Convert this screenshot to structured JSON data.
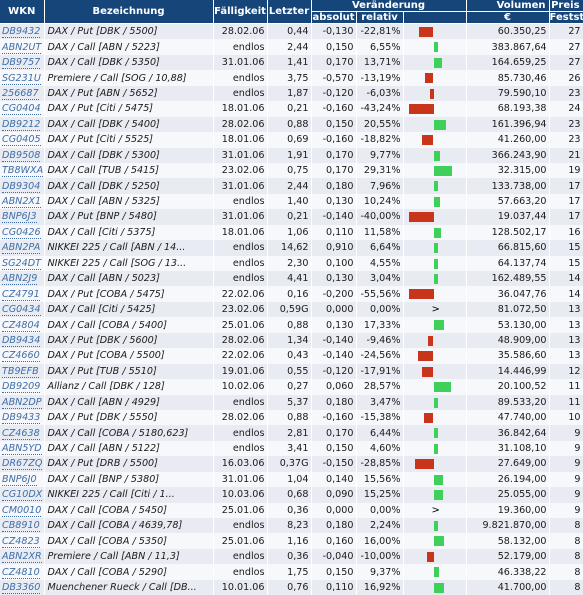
{
  "header": {
    "wkn": "WKN",
    "bezeichnung": "Bezeichnung",
    "faelligkeit": "Fälligkeit",
    "letzter": "Letzter",
    "veraenderung": "Veränderung",
    "absolut": "absolut",
    "relativ": "relativ",
    "volumen": "Volumen",
    "waehrung": "€",
    "preis": "Preis",
    "feststellungen": "Festst."
  },
  "colors": {
    "header_bg": "#16457a",
    "positive": "#3fd05a",
    "negative": "#c8351a",
    "link": "#3f6ea8"
  },
  "rows": [
    {
      "wkn": "DB9432",
      "bez": "DAX / Put [DBK / 5500]",
      "faell": "28.02.06",
      "letzter": "0,44",
      "abs": "-0,130",
      "rel": "-22,81%",
      "pct": -22.81,
      "vol": "60.350,25",
      "preis": "27"
    },
    {
      "wkn": "ABN2UT",
      "bez": "DAX / Call [ABN / 5223]",
      "faell": "endlos",
      "letzter": "2,44",
      "abs": "0,150",
      "rel": "6,55%",
      "pct": 6.55,
      "vol": "383.867,64",
      "preis": "27"
    },
    {
      "wkn": "DB9757",
      "bez": "DAX / Call [DBK / 5350]",
      "faell": "31.01.06",
      "letzter": "1,41",
      "abs": "0,170",
      "rel": "13,71%",
      "pct": 13.71,
      "vol": "164.659,25",
      "preis": "27"
    },
    {
      "wkn": "SG231U",
      "bez": "Premiere / Call [SOG / 10,88]",
      "faell": "endlos",
      "letzter": "3,75",
      "abs": "-0,570",
      "rel": "-13,19%",
      "pct": -13.19,
      "vol": "85.730,46",
      "preis": "26"
    },
    {
      "wkn": "256687",
      "bez": "DAX / Put [ABN / 5652]",
      "faell": "endlos",
      "letzter": "1,87",
      "abs": "-0,120",
      "rel": "-6,03%",
      "pct": -6.03,
      "vol": "79.590,10",
      "preis": "23"
    },
    {
      "wkn": "CG0404",
      "bez": "DAX / Put [Citi / 5475]",
      "faell": "18.01.06",
      "letzter": "0,21",
      "abs": "-0,160",
      "rel": "-43,24%",
      "pct": -43.24,
      "vol": "68.193,38",
      "preis": "24"
    },
    {
      "wkn": "DB9212",
      "bez": "DAX / Call [DBK / 5400]",
      "faell": "28.02.06",
      "letzter": "0,88",
      "abs": "0,150",
      "rel": "20,55%",
      "pct": 20.55,
      "vol": "161.396,94",
      "preis": "23"
    },
    {
      "wkn": "CG0405",
      "bez": "DAX / Put [Citi / 5525]",
      "faell": "18.01.06",
      "letzter": "0,69",
      "abs": "-0,160",
      "rel": "-18,82%",
      "pct": -18.82,
      "vol": "41.260,00",
      "preis": "23"
    },
    {
      "wkn": "DB9508",
      "bez": "DAX / Call [DBK / 5300]",
      "faell": "31.01.06",
      "letzter": "1,91",
      "abs": "0,170",
      "rel": "9,77%",
      "pct": 9.77,
      "vol": "366.243,90",
      "preis": "21"
    },
    {
      "wkn": "TB8WXA",
      "bez": "DAX / Call [TUB / 5415]",
      "faell": "23.02.06",
      "letzter": "0,75",
      "abs": "0,170",
      "rel": "29,31%",
      "pct": 29.31,
      "vol": "32.315,00",
      "preis": "19"
    },
    {
      "wkn": "DB9304",
      "bez": "DAX / Call [DBK / 5250]",
      "faell": "31.01.06",
      "letzter": "2,44",
      "abs": "0,180",
      "rel": "7,96%",
      "pct": 7.96,
      "vol": "133.738,00",
      "preis": "17"
    },
    {
      "wkn": "ABN2X1",
      "bez": "DAX / Call [ABN / 5325]",
      "faell": "endlos",
      "letzter": "1,40",
      "abs": "0,130",
      "rel": "10,24%",
      "pct": 10.24,
      "vol": "57.663,20",
      "preis": "17"
    },
    {
      "wkn": "BNP6J3",
      "bez": "DAX / Put [BNP / 5480]",
      "faell": "31.01.06",
      "letzter": "0,21",
      "abs": "-0,140",
      "rel": "-40,00%",
      "pct": -40.0,
      "vol": "19.037,44",
      "preis": "17"
    },
    {
      "wkn": "CG0426",
      "bez": "DAX / Call [Citi / 5375]",
      "faell": "18.01.06",
      "letzter": "1,06",
      "abs": "0,110",
      "rel": "11,58%",
      "pct": 11.58,
      "vol": "128.502,17",
      "preis": "16"
    },
    {
      "wkn": "ABN2PA",
      "bez": "NIKKEI 225 / Call [ABN / 14...",
      "faell": "endlos",
      "letzter": "14,62",
      "abs": "0,910",
      "rel": "6,64%",
      "pct": 6.64,
      "vol": "66.815,60",
      "preis": "15"
    },
    {
      "wkn": "SG24DT",
      "bez": "NIKKEI 225 / Call [SOG / 13...",
      "faell": "endlos",
      "letzter": "2,30",
      "abs": "0,100",
      "rel": "4,55%",
      "pct": 4.55,
      "vol": "64.137,74",
      "preis": "15"
    },
    {
      "wkn": "ABN2J9",
      "bez": "DAX / Call [ABN / 5023]",
      "faell": "endlos",
      "letzter": "4,41",
      "abs": "0,130",
      "rel": "3,04%",
      "pct": 3.04,
      "vol": "162.489,55",
      "preis": "14"
    },
    {
      "wkn": "CZ4791",
      "bez": "DAX / Put [COBA / 5475]",
      "faell": "22.02.06",
      "letzter": "0,16",
      "abs": "-0,200",
      "rel": "-55,56%",
      "pct": -55.56,
      "vol": "36.047,76",
      "preis": "14"
    },
    {
      "wkn": "CG0434",
      "bez": "DAX / Call [Citi / 5425]",
      "faell": "23.02.06",
      "letzter": "0,59G",
      "abs": "0,000",
      "rel": "0,00%",
      "pct": 0,
      "marker": ">",
      "vol": "81.072,50",
      "preis": "13"
    },
    {
      "wkn": "CZ4804",
      "bez": "DAX / Call [COBA / 5400]",
      "faell": "25.01.06",
      "letzter": "0,88",
      "abs": "0,130",
      "rel": "17,33%",
      "pct": 17.33,
      "vol": "53.130,00",
      "preis": "13"
    },
    {
      "wkn": "DB9434",
      "bez": "DAX / Put [DBK / 5600]",
      "faell": "28.02.06",
      "letzter": "1,34",
      "abs": "-0,140",
      "rel": "-9,46%",
      "pct": -9.46,
      "vol": "48.909,00",
      "preis": "13"
    },
    {
      "wkn": "CZ4660",
      "bez": "DAX / Put [COBA / 5500]",
      "faell": "22.02.06",
      "letzter": "0,43",
      "abs": "-0,140",
      "rel": "-24,56%",
      "pct": -24.56,
      "vol": "35.586,60",
      "preis": "13"
    },
    {
      "wkn": "TB9EFB",
      "bez": "DAX / Put [TUB / 5510]",
      "faell": "19.01.06",
      "letzter": "0,55",
      "abs": "-0,120",
      "rel": "-17,91%",
      "pct": -17.91,
      "vol": "14.446,99",
      "preis": "12"
    },
    {
      "wkn": "DB9209",
      "bez": "Allianz / Call [DBK / 128]",
      "faell": "10.02.06",
      "letzter": "0,27",
      "abs": "0,060",
      "rel": "28,57%",
      "pct": 28.57,
      "vol": "20.100,52",
      "preis": "11"
    },
    {
      "wkn": "ABN2DP",
      "bez": "DAX / Call [ABN / 4929]",
      "faell": "endlos",
      "letzter": "5,37",
      "abs": "0,180",
      "rel": "3,47%",
      "pct": 3.47,
      "vol": "89.533,20",
      "preis": "11"
    },
    {
      "wkn": "DB9433",
      "bez": "DAX / Put [DBK / 5550]",
      "faell": "28.02.06",
      "letzter": "0,88",
      "abs": "-0,160",
      "rel": "-15,38%",
      "pct": -15.38,
      "vol": "47.740,00",
      "preis": "10"
    },
    {
      "wkn": "CZ4638",
      "bez": "DAX / Call [COBA / 5180,623]",
      "faell": "endlos",
      "letzter": "2,81",
      "abs": "0,170",
      "rel": "6,44%",
      "pct": 6.44,
      "vol": "36.842,64",
      "preis": "9"
    },
    {
      "wkn": "ABN5YD",
      "bez": "DAX / Call [ABN / 5122]",
      "faell": "endlos",
      "letzter": "3,41",
      "abs": "0,150",
      "rel": "4,60%",
      "pct": 4.6,
      "vol": "31.108,10",
      "preis": "9"
    },
    {
      "wkn": "DR67ZQ",
      "bez": "DAX / Put [DRB / 5500]",
      "faell": "16.03.06",
      "letzter": "0,37G",
      "abs": "-0,150",
      "rel": "-28,85%",
      "pct": -28.85,
      "vol": "27.649,00",
      "preis": "9"
    },
    {
      "wkn": "BNP6J0",
      "bez": "DAX / Call [BNP / 5380]",
      "faell": "31.01.06",
      "letzter": "1,04",
      "abs": "0,140",
      "rel": "15,56%",
      "pct": 15.56,
      "vol": "26.194,00",
      "preis": "9"
    },
    {
      "wkn": "CG10DX",
      "bez": "NIKKEI 225 / Call [Citi / 1...",
      "faell": "10.03.06",
      "letzter": "0,68",
      "abs": "0,090",
      "rel": "15,25%",
      "pct": 15.25,
      "vol": "25.055,00",
      "preis": "9"
    },
    {
      "wkn": "CM0010",
      "bez": "DAX / Call [COBA / 5450]",
      "faell": "25.01.06",
      "letzter": "0,36",
      "abs": "0,000",
      "rel": "0,00%",
      "pct": 0,
      "marker": ">",
      "vol": "19.360,00",
      "preis": "9"
    },
    {
      "wkn": "CB8910",
      "bez": "DAX / Call [COBA / 4639,78]",
      "faell": "endlos",
      "letzter": "8,23",
      "abs": "0,180",
      "rel": "2,24%",
      "pct": 2.24,
      "vol": "9.821.870,00",
      "preis": "8"
    },
    {
      "wkn": "CZ4823",
      "bez": "DAX / Call [COBA / 5350]",
      "faell": "25.01.06",
      "letzter": "1,16",
      "abs": "0,160",
      "rel": "16,00%",
      "pct": 16.0,
      "vol": "58.132,00",
      "preis": "8"
    },
    {
      "wkn": "ABN2XR",
      "bez": "Premiere / Call [ABN / 11,3]",
      "faell": "endlos",
      "letzter": "0,36",
      "abs": "-0,040",
      "rel": "-10,00%",
      "pct": -10.0,
      "vol": "52.179,00",
      "preis": "8"
    },
    {
      "wkn": "CZ4810",
      "bez": "DAX / Call [COBA / 5290]",
      "faell": "endlos",
      "letzter": "1,75",
      "abs": "0,150",
      "rel": "9,37%",
      "pct": 9.37,
      "vol": "46.338,22",
      "preis": "8"
    },
    {
      "wkn": "DB3360",
      "bez": "Muenchener Rueck / Call [DB...",
      "faell": "10.01.06",
      "letzter": "0,76",
      "abs": "0,110",
      "rel": "16,92%",
      "pct": 16.92,
      "vol": "41.700,00",
      "preis": "8"
    }
  ]
}
